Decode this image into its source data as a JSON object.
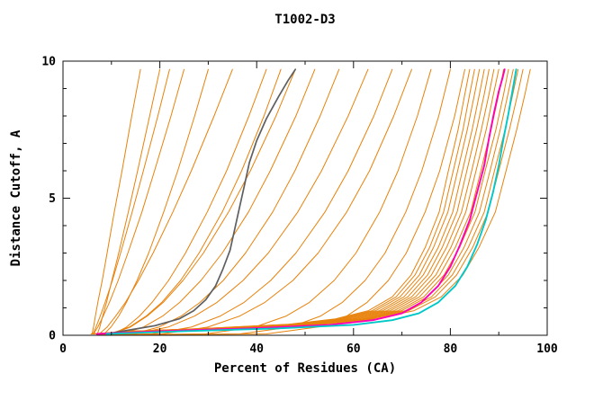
{
  "chart_data": {
    "type": "line",
    "title": "T1002-D3",
    "xlabel": "Percent of Residues (CA)",
    "ylabel": "Distance Cutoff, A",
    "xlim": [
      0,
      100
    ],
    "ylim": [
      0,
      10
    ],
    "grid": "off",
    "legend": "none",
    "x_major_ticks": [
      0,
      20,
      40,
      60,
      80,
      100
    ],
    "x_major_labels": [
      "0",
      "20",
      "40",
      "60",
      "80",
      "100"
    ],
    "x_minor_ticks": [
      10,
      30,
      50,
      70,
      90
    ],
    "y_major_ticks": [
      0,
      5,
      10
    ],
    "y_major_labels": [
      "0",
      "5",
      "10"
    ],
    "y_minor_ticks": [
      1,
      2,
      3,
      4,
      6,
      7,
      8,
      9
    ],
    "colors": {
      "orange": "#e8820c",
      "gray": "#5f5f5f",
      "magenta": "#ff00b4",
      "cyan": "#00c8c8",
      "frame": "#111111",
      "background": "#ffffff"
    },
    "line_widths": {
      "orange": 1,
      "gray": 1.7,
      "magenta": 1.9,
      "cyan": 1.9
    },
    "y_grids": {
      "coarse": [
        0.05,
        0.3,
        0.7,
        1.2,
        2,
        3,
        4.5,
        6,
        8,
        9.7
      ],
      "coarse2": [
        0.02,
        0.05,
        0.3,
        0.7,
        1.2,
        2,
        3,
        4.5,
        6,
        8,
        9.7
      ],
      "fine": [
        0.05,
        0.15,
        0.25,
        0.4,
        0.6,
        0.9,
        1.4,
        2.2,
        3.2,
        4.5,
        6,
        7.5,
        8.8,
        9.7
      ]
    },
    "series": [
      {
        "name": "orange-01",
        "color": "orange",
        "y": "coarse",
        "x": [
          6,
          6.3,
          6.7,
          7.2,
          8.1,
          9.1,
          10.6,
          12.2,
          14.2,
          16
        ]
      },
      {
        "name": "orange-02",
        "color": "orange",
        "y": "coarse",
        "x": [
          7.1,
          7.6,
          8.2,
          9,
          10.1,
          11.5,
          13.5,
          15.4,
          17.9,
          20
        ]
      },
      {
        "name": "orange-03",
        "color": "orange",
        "y": "coarse",
        "x": [
          6.2,
          6.8,
          7.7,
          8.7,
          10.2,
          11.9,
          14.3,
          16.6,
          19.6,
          22
        ]
      },
      {
        "name": "orange-04",
        "color": "orange",
        "y": "coarse",
        "x": [
          6.3,
          7.2,
          8.3,
          9.6,
          11.4,
          13.4,
          16.3,
          18.9,
          22.3,
          25
        ]
      },
      {
        "name": "orange-05",
        "color": "orange",
        "y": "coarse",
        "x": [
          8.5,
          9.9,
          11.5,
          13.1,
          15.3,
          17.7,
          20.8,
          23.7,
          27.2,
          30
        ]
      },
      {
        "name": "orange-06",
        "color": "orange",
        "y": "coarse",
        "x": [
          7.5,
          9.1,
          10.9,
          12.9,
          15.6,
          18.6,
          22.7,
          26.5,
          31.2,
          35
        ]
      },
      {
        "name": "orange-07",
        "color": "orange",
        "y": "coarse",
        "x": [
          10.4,
          13.1,
          15.8,
          18.4,
          21.8,
          25.3,
          29.8,
          33.8,
          38.4,
          42
        ]
      },
      {
        "name": "orange-08",
        "color": "orange",
        "y": "coarse",
        "x": [
          9.7,
          13.7,
          17.2,
          20.4,
          24.3,
          28.1,
          32.9,
          36.9,
          41.5,
          45
        ]
      },
      {
        "name": "orange-09",
        "color": "orange",
        "y": "coarse",
        "x": [
          10.2,
          13.9,
          17.4,
          20.7,
          24.8,
          29,
          34.2,
          38.7,
          44,
          48
        ]
      },
      {
        "name": "orange-10",
        "color": "orange",
        "y": "coarse2",
        "x": [
          7,
          12.1,
          16.6,
          20.6,
          24.1,
          28.5,
          32.9,
          38.3,
          42.8,
          48.1,
          52
        ]
      },
      {
        "name": "orange-11",
        "color": "orange",
        "y": "coarse2",
        "x": [
          7.5,
          14.4,
          19.8,
          24.4,
          28.3,
          33.1,
          37.7,
          43.3,
          47.9,
          53.1,
          57
        ]
      },
      {
        "name": "orange-12",
        "color": "orange",
        "y": "coarse2",
        "x": [
          8,
          14.7,
          21.7,
          27.2,
          31.8,
          37.2,
          42.4,
          48.5,
          53.4,
          58.9,
          63
        ]
      },
      {
        "name": "orange-13",
        "color": "orange",
        "y": "coarse2",
        "x": [
          8.5,
          18.3,
          26.5,
          32.5,
          37.4,
          42.9,
          48.1,
          54.1,
          58.9,
          64.2,
          68
        ]
      },
      {
        "name": "orange-14",
        "color": "orange",
        "y": "coarse2",
        "x": [
          9,
          20.4,
          29.9,
          36.5,
          41.7,
          47.5,
          52.7,
          58.6,
          63.3,
          68.3,
          72
        ]
      },
      {
        "name": "orange-15",
        "color": "orange",
        "y": "coarse2",
        "x": [
          9.5,
          29.4,
          39.6,
          46.1,
          50.9,
          56,
          60.5,
          65.4,
          69.2,
          73.2,
          76
        ]
      },
      {
        "name": "orange-16",
        "color": "orange",
        "y": "coarse2",
        "x": [
          10,
          36.5,
          47,
          53.2,
          57.7,
          62.4,
          66.5,
          70.8,
          74.1,
          77.6,
          80
        ]
      },
      {
        "name": "orange-17",
        "color": "orange",
        "y": "coarse2",
        "x": [
          10.5,
          42,
          52.5,
          58.6,
          62.8,
          67.2,
          70.9,
          74.8,
          77.8,
          80.9,
          83
        ]
      },
      {
        "name": "orange-18",
        "color": "orange",
        "y": "fine",
        "x": [
          5.8,
          14.6,
          29.1,
          46.6,
          56.3,
          63.1,
          68,
          71.9,
          74.8,
          77.7,
          79.6,
          81.6,
          83,
          84
        ]
      },
      {
        "name": "orange-19",
        "color": "orange",
        "y": "fine",
        "x": [
          5.9,
          14.7,
          29.5,
          47.2,
          57,
          63.9,
          68.8,
          72.7,
          75.7,
          78.6,
          80.6,
          82.6,
          84,
          85
        ]
      },
      {
        "name": "orange-20",
        "color": "orange",
        "y": "fine",
        "x": [
          6,
          14.9,
          29.8,
          47.7,
          57.7,
          64.6,
          69.6,
          73.6,
          76.5,
          79.5,
          81.5,
          83.5,
          85,
          86
        ]
      },
      {
        "name": "orange-21",
        "color": "orange",
        "y": "fine",
        "x": [
          6,
          15.1,
          30.2,
          48.3,
          58.3,
          65.4,
          70.4,
          74.4,
          77.5,
          80.5,
          82.5,
          84.5,
          86,
          87
        ]
      },
      {
        "name": "orange-22",
        "color": "orange",
        "y": "fine",
        "x": [
          6.1,
          15.3,
          30.5,
          48.8,
          59,
          66.1,
          71.2,
          75.3,
          78.3,
          81.4,
          83.4,
          85.4,
          87,
          88
        ]
      },
      {
        "name": "orange-23",
        "color": "orange",
        "y": "fine",
        "x": [
          6.2,
          15.4,
          30.9,
          49.4,
          59.7,
          66.9,
          72,
          76.1,
          79.2,
          82.3,
          84.4,
          86.4,
          88,
          89
        ]
      },
      {
        "name": "orange-24",
        "color": "orange",
        "y": "fine",
        "x": [
          6.2,
          15.6,
          31.2,
          49.9,
          60.3,
          67.6,
          72.8,
          77,
          80.1,
          83.2,
          85.3,
          87.4,
          88.9,
          90
        ]
      },
      {
        "name": "orange-25",
        "color": "orange",
        "y": "fine",
        "x": [
          6.3,
          15.8,
          31.6,
          50.5,
          61,
          68.4,
          73.6,
          77.8,
          81,
          84.2,
          86.3,
          88.4,
          90,
          91
        ]
      },
      {
        "name": "orange-26",
        "color": "orange",
        "y": "fine",
        "x": [
          6.4,
          16,
          31.9,
          51.1,
          61.7,
          69.2,
          74.5,
          78.7,
          81.9,
          85.1,
          87.2,
          89.4,
          91,
          92
        ]
      },
      {
        "name": "orange-27",
        "color": "orange",
        "y": "fine",
        "x": [
          6.5,
          16.1,
          32.3,
          51.6,
          62.4,
          69.9,
          75.3,
          79.6,
          82.8,
          86,
          88.2,
          90.3,
          91.9,
          93
        ]
      },
      {
        "name": "orange-28",
        "color": "orange",
        "y": "fine",
        "x": [
          6.5,
          16.3,
          32.6,
          52.2,
          63,
          70.7,
          76.1,
          80.4,
          83.7,
          87,
          89.1,
          91.3,
          92.9,
          94
        ]
      },
      {
        "name": "orange-29",
        "color": "orange",
        "y": "fine",
        "x": [
          6.6,
          16.5,
          32.9,
          52.7,
          63.7,
          71.4,
          76.9,
          81.3,
          84.6,
          87.8,
          90,
          92.2,
          93.9,
          95
        ]
      },
      {
        "name": "orange-30",
        "color": "orange",
        "y": "fine",
        "x": [
          6.7,
          16.7,
          33.5,
          53.6,
          64.7,
          72.5,
          78.1,
          82.6,
          85.9,
          89.3,
          91.5,
          93.7,
          95.4,
          96.5
        ]
      },
      {
        "name": "gray-reference",
        "color": "gray",
        "x": [
          10,
          14,
          19,
          24,
          27,
          29.5,
          31.5,
          33,
          34.5,
          35.5,
          36.5,
          37.5,
          38.5,
          40,
          42,
          44.5,
          46.5,
          48
        ],
        "y": [
          0.08,
          0.2,
          0.35,
          0.6,
          0.9,
          1.3,
          1.8,
          2.4,
          3.1,
          3.9,
          4.7,
          5.5,
          6.3,
          7.1,
          7.9,
          8.7,
          9.3,
          9.7
        ]
      },
      {
        "name": "magenta-highlight",
        "color": "magenta",
        "x": [
          7,
          20,
          38,
          55,
          64,
          70,
          74,
          77.5,
          80,
          82,
          84,
          85.5,
          87,
          88,
          89,
          90,
          90.8,
          91.2
        ],
        "y": [
          0.05,
          0.15,
          0.25,
          0.38,
          0.55,
          0.8,
          1.2,
          1.8,
          2.5,
          3.3,
          4.2,
          5.2,
          6.2,
          7.2,
          8.1,
          8.9,
          9.4,
          9.7
        ]
      },
      {
        "name": "cyan-highlight",
        "color": "cyan",
        "x": [
          9,
          25,
          44,
          60,
          68,
          73.5,
          77.5,
          81,
          83.5,
          85.5,
          87.3,
          88.8,
          90,
          91,
          92,
          92.8,
          93.3,
          93.6
        ],
        "y": [
          0.05,
          0.15,
          0.25,
          0.38,
          0.55,
          0.8,
          1.2,
          1.8,
          2.5,
          3.3,
          4.2,
          5.2,
          6.2,
          7.2,
          8.1,
          8.9,
          9.4,
          9.7
        ]
      }
    ]
  }
}
